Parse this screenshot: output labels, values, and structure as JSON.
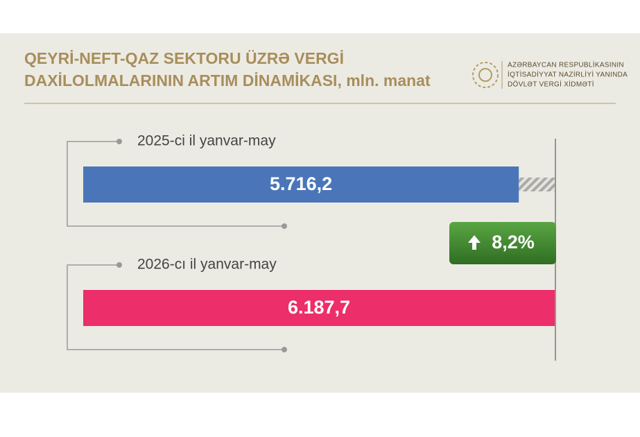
{
  "chart_data": {
    "type": "bar",
    "title": [
      "QEYRİ-NEFT-QAZ SEKTORU ÜZRƏ VERGİ",
      "DAXİLOLMALARININ ARTIM DİNAMİKASI, mln. manat"
    ],
    "source": [
      "AZƏRBAYCAN RESPUBLİKASININ",
      "İQTİSADİYYAT NAZİRLİYİ YANINDA",
      "DÖVLƏT VERGİ XİDMƏTİ"
    ],
    "categories": [
      "2025-ci il yanvar-may",
      "2026-cı il yanvar-may"
    ],
    "values": [
      5716.2,
      6187.7
    ],
    "value_labels": [
      "5.716,2",
      "6.187,7"
    ],
    "colors": [
      "#4a76b9",
      "#ec2e6b"
    ],
    "change": {
      "value": 8.2,
      "label": "8,2%"
    }
  }
}
